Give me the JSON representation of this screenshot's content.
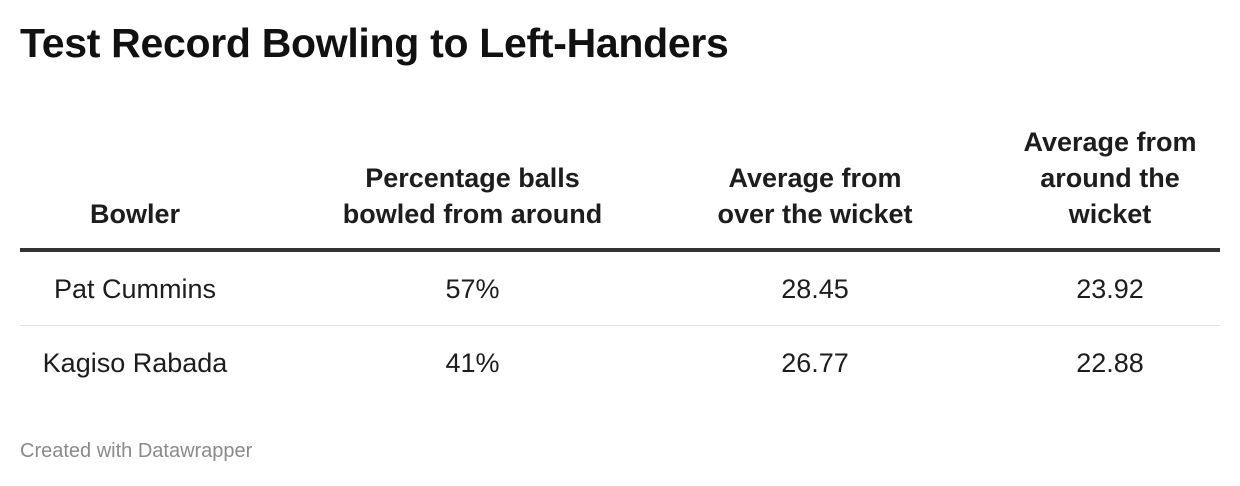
{
  "title": "Test Record Bowling to Left-Handers",
  "footer": "Created with Datawrapper",
  "chart_data": {
    "type": "table",
    "columns": [
      [
        "Bowler"
      ],
      [
        "Percentage balls",
        "bowled from around"
      ],
      [
        "Average from",
        "over the wicket"
      ],
      [
        "Average from",
        "around the",
        "wicket"
      ]
    ],
    "rows": [
      [
        "Pat Cummins",
        "57%",
        "28.45",
        "23.92"
      ],
      [
        "Kagiso Rabada",
        "41%",
        "26.77",
        "22.88"
      ]
    ]
  }
}
